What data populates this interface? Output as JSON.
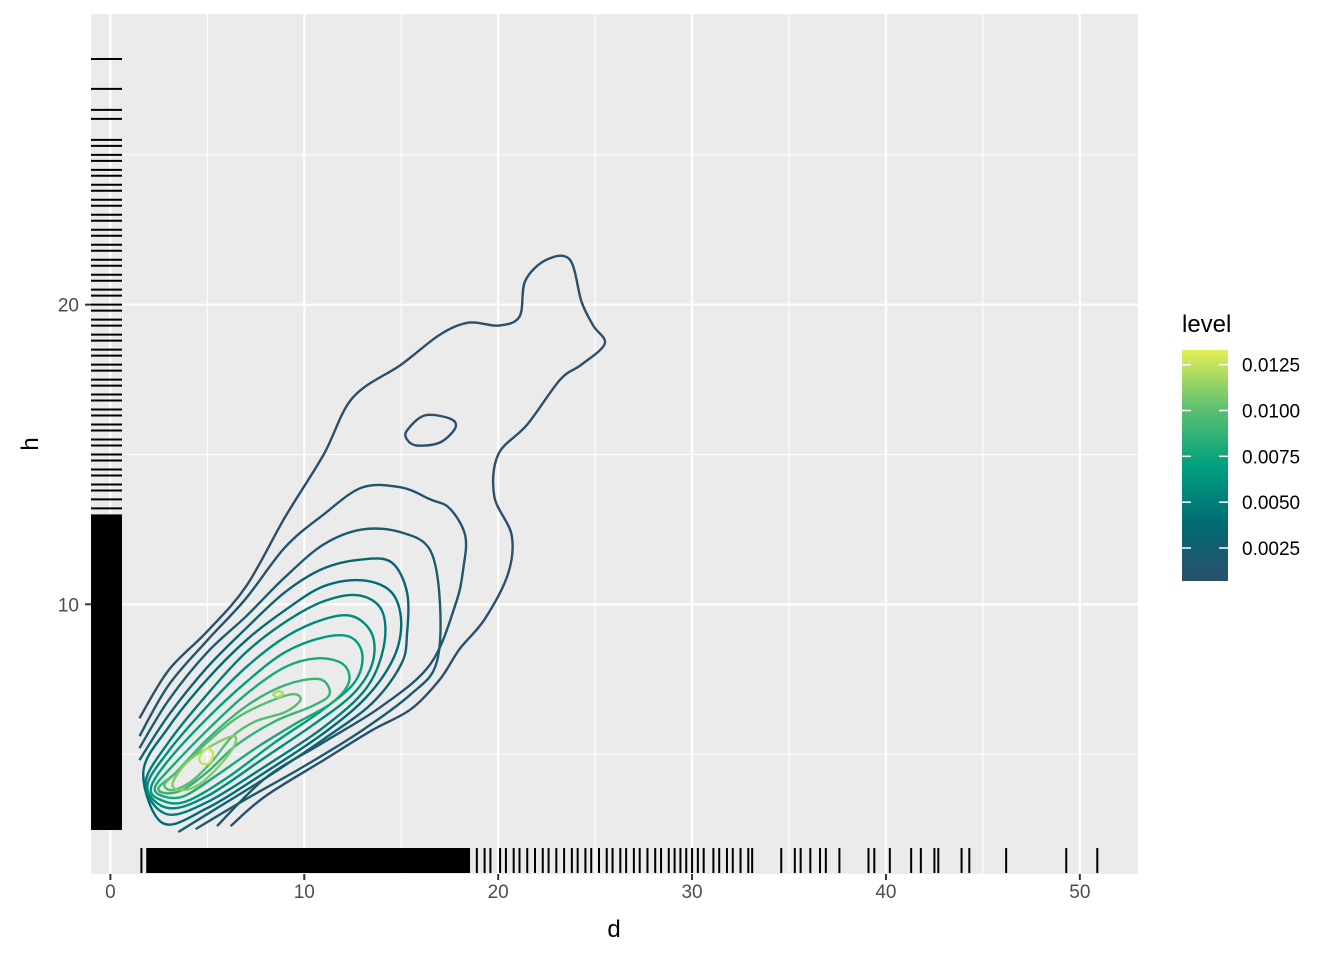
{
  "chart_data": {
    "type": "contour",
    "title": "",
    "xlabel": "d",
    "ylabel": "h",
    "xlim": [
      -1,
      53
    ],
    "ylim": [
      1,
      29.7
    ],
    "x_ticks": [
      0,
      10,
      20,
      30,
      40,
      50
    ],
    "y_ticks": [
      10,
      20
    ],
    "grid": true,
    "legend": {
      "title": "level",
      "position": "right",
      "range": [
        0.0007,
        0.0133
      ],
      "breaks": [
        0.0025,
        0.005,
        0.0075,
        0.01,
        0.0125
      ],
      "break_labels": [
        "0.0025",
        "0.0050",
        "0.0075",
        "0.0100",
        "0.0125"
      ],
      "colors": [
        "#2c4f6b",
        "#006b75",
        "#00a07d",
        "#5fc170",
        "#e5ee56"
      ]
    },
    "contours": [
      {
        "level": 0.0007,
        "points": [
          [
            1.5,
            6.2
          ],
          [
            3,
            7.8
          ],
          [
            5,
            9.1
          ],
          [
            7,
            10.6
          ],
          [
            9,
            12.9
          ],
          [
            11,
            15.0
          ],
          [
            12.5,
            16.9
          ],
          [
            15,
            18.0
          ],
          [
            17,
            19.0
          ],
          [
            18.5,
            19.4
          ],
          [
            20,
            19.3
          ],
          [
            21.1,
            19.6
          ],
          [
            21.4,
            20.8
          ],
          [
            22.5,
            21.5
          ],
          [
            23.7,
            21.5
          ],
          [
            24.3,
            20.1
          ],
          [
            24.9,
            19.3
          ],
          [
            25.5,
            18.7
          ],
          [
            24.3,
            18.0
          ],
          [
            23.2,
            17.5
          ],
          [
            21.5,
            16.0
          ],
          [
            20,
            15.0
          ],
          [
            19.8,
            13.6
          ],
          [
            20.7,
            12.3
          ],
          [
            20.5,
            11.0
          ],
          [
            19.3,
            9.5
          ],
          [
            18,
            8.5
          ],
          [
            17,
            7.5
          ],
          [
            15.5,
            6.5
          ],
          [
            13.5,
            5.8
          ],
          [
            11,
            4.8
          ],
          [
            8,
            3.6
          ],
          [
            6.2,
            2.6
          ]
        ],
        "closed": false
      },
      {
        "level": 0.0007,
        "points": [
          [
            15.3,
            15.8
          ],
          [
            16.2,
            16.3
          ],
          [
            17.5,
            16.2
          ],
          [
            17.8,
            15.9
          ],
          [
            17.0,
            15.4
          ],
          [
            15.8,
            15.3
          ],
          [
            15.3,
            15.5
          ]
        ],
        "closed": true
      },
      {
        "level": 0.0014,
        "points": [
          [
            1.5,
            5.6
          ],
          [
            3,
            7.3
          ],
          [
            5,
            8.8
          ],
          [
            7,
            10.2
          ],
          [
            9,
            11.9
          ],
          [
            11,
            13.0
          ],
          [
            13,
            13.9
          ],
          [
            15,
            13.9
          ],
          [
            16.5,
            13.5
          ],
          [
            17.5,
            13.2
          ],
          [
            18.3,
            12.3
          ],
          [
            18.2,
            11.2
          ],
          [
            17.8,
            10.0
          ],
          [
            16.5,
            8.0
          ],
          [
            14,
            6.6
          ],
          [
            11,
            5.4
          ],
          [
            8,
            4.2
          ],
          [
            5.5,
            2.6
          ]
        ],
        "closed": false
      },
      {
        "level": 0.002,
        "points": [
          [
            1.5,
            5.2
          ],
          [
            3,
            6.8
          ],
          [
            5,
            8.4
          ],
          [
            7,
            9.6
          ],
          [
            9,
            10.9
          ],
          [
            11,
            12.0
          ],
          [
            13,
            12.5
          ],
          [
            15,
            12.4
          ],
          [
            16.5,
            11.8
          ],
          [
            17,
            10.0
          ],
          [
            16.8,
            8.0
          ],
          [
            15.5,
            7.0
          ],
          [
            13,
            5.8
          ],
          [
            10,
            4.6
          ],
          [
            7,
            3.5
          ],
          [
            4.4,
            2.5
          ]
        ],
        "closed": false
      },
      {
        "level": 0.0028,
        "points": [
          [
            1.5,
            4.8
          ],
          [
            3,
            6.3
          ],
          [
            5,
            7.9
          ],
          [
            7,
            9.2
          ],
          [
            9,
            10.4
          ],
          [
            11,
            11.2
          ],
          [
            13,
            11.5
          ],
          [
            14.5,
            11.4
          ],
          [
            15.3,
            10.4
          ],
          [
            15.3,
            9.0
          ],
          [
            15,
            8.0
          ],
          [
            13.5,
            6.7
          ],
          [
            11,
            5.5
          ],
          [
            8,
            4.2
          ],
          [
            5.5,
            3.2
          ],
          [
            3.5,
            2.4
          ]
        ],
        "closed": false
      },
      {
        "level": 0.0038,
        "points": [
          [
            1.7,
            4.4
          ],
          [
            3,
            5.9
          ],
          [
            5,
            7.5
          ],
          [
            7,
            8.8
          ],
          [
            9,
            9.8
          ],
          [
            11,
            10.6
          ],
          [
            13,
            10.8
          ],
          [
            14.5,
            10.4
          ],
          [
            15,
            9.4
          ],
          [
            14.6,
            8.2
          ],
          [
            13.2,
            6.9
          ],
          [
            11,
            5.7
          ],
          [
            8,
            4.4
          ],
          [
            5,
            3.2
          ],
          [
            2.7,
            2.7
          ]
        ],
        "closed": true
      },
      {
        "level": 0.0048,
        "points": [
          [
            1.8,
            4.0
          ],
          [
            3,
            5.4
          ],
          [
            5,
            7.0
          ],
          [
            7,
            8.4
          ],
          [
            9,
            9.4
          ],
          [
            11,
            10.1
          ],
          [
            12.8,
            10.3
          ],
          [
            14.0,
            9.8
          ],
          [
            14.1,
            8.6
          ],
          [
            13.2,
            7.2
          ],
          [
            11,
            5.9
          ],
          [
            8,
            4.6
          ],
          [
            5,
            3.4
          ],
          [
            2.9,
            3.0
          ]
        ],
        "closed": true
      },
      {
        "level": 0.0058,
        "points": [
          [
            1.9,
            3.9
          ],
          [
            3,
            5.1
          ],
          [
            5,
            6.6
          ],
          [
            7,
            7.9
          ],
          [
            9,
            8.9
          ],
          [
            11,
            9.5
          ],
          [
            12.5,
            9.6
          ],
          [
            13.5,
            9.0
          ],
          [
            13.5,
            8.0
          ],
          [
            12.5,
            7.0
          ],
          [
            10.5,
            6.0
          ],
          [
            8,
            4.9
          ],
          [
            5,
            3.6
          ],
          [
            3.0,
            3.2
          ]
        ],
        "closed": true
      },
      {
        "level": 0.0068,
        "points": [
          [
            2.1,
            3.9
          ],
          [
            3,
            4.8
          ],
          [
            5,
            6.2
          ],
          [
            7,
            7.4
          ],
          [
            9,
            8.4
          ],
          [
            11,
            8.9
          ],
          [
            12.4,
            8.9
          ],
          [
            13,
            8.3
          ],
          [
            12.6,
            7.4
          ],
          [
            11,
            6.5
          ],
          [
            8.5,
            5.4
          ],
          [
            6,
            4.2
          ],
          [
            3.8,
            3.4
          ],
          [
            2.5,
            3.5
          ]
        ],
        "closed": true
      },
      {
        "level": 0.0078,
        "points": [
          [
            2.3,
            3.9
          ],
          [
            3.2,
            4.6
          ],
          [
            5,
            5.8
          ],
          [
            7,
            7.0
          ],
          [
            9,
            7.9
          ],
          [
            10.7,
            8.2
          ],
          [
            12,
            8.0
          ],
          [
            12.3,
            7.4
          ],
          [
            11.4,
            6.7
          ],
          [
            9.5,
            6.0
          ],
          [
            7.5,
            5.2
          ],
          [
            5.5,
            4.3
          ],
          [
            3.8,
            3.6
          ],
          [
            2.7,
            3.6
          ]
        ],
        "closed": true
      },
      {
        "level": 0.0088,
        "points": [
          [
            2.5,
            3.9
          ],
          [
            3.4,
            4.4
          ],
          [
            5,
            5.5
          ],
          [
            7,
            6.6
          ],
          [
            9,
            7.3
          ],
          [
            10.8,
            7.5
          ],
          [
            11.3,
            7.0
          ],
          [
            10.4,
            6.6
          ],
          [
            8.5,
            6.1
          ],
          [
            6.5,
            5.3
          ],
          [
            5,
            4.4
          ],
          [
            3.7,
            3.8
          ],
          [
            2.8,
            3.7
          ]
        ],
        "closed": true
      },
      {
        "level": 0.0098,
        "points": [
          [
            2.8,
            4.0
          ],
          [
            3.6,
            4.5
          ],
          [
            5,
            5.4
          ],
          [
            6.5,
            6.2
          ],
          [
            8,
            6.7
          ],
          [
            9.4,
            7.0
          ],
          [
            9.8,
            6.8
          ],
          [
            9,
            6.4
          ],
          [
            7.5,
            6.1
          ],
          [
            6.3,
            5.6
          ],
          [
            5.3,
            4.8
          ],
          [
            4.2,
            4.1
          ],
          [
            3.2,
            3.8
          ]
        ],
        "closed": true
      },
      {
        "level": 0.011,
        "points": [
          [
            3.2,
            4.0
          ],
          [
            3.9,
            4.7
          ],
          [
            5,
            5.2
          ],
          [
            6.3,
            5.6
          ],
          [
            6.4,
            5.3
          ],
          [
            5.6,
            4.6
          ],
          [
            4.6,
            4.0
          ],
          [
            3.7,
            3.8
          ]
        ],
        "closed": true
      },
      {
        "level": 0.012,
        "points": [
          [
            8.4,
            7.0
          ],
          [
            8.7,
            7.1
          ],
          [
            8.9,
            7.0
          ],
          [
            8.6,
            6.9
          ]
        ],
        "closed": true
      },
      {
        "level": 0.0125,
        "points": [
          [
            4.6,
            4.9
          ],
          [
            5.0,
            5.2
          ],
          [
            5.3,
            5.0
          ],
          [
            5.1,
            4.7
          ],
          [
            4.7,
            4.7
          ]
        ],
        "closed": true
      }
    ],
    "rug_x_dense_range": [
      1.9,
      18.5
    ],
    "rug_x": [
      1.6,
      1.9,
      18.5,
      18.9,
      19.3,
      19.6,
      20.1,
      20.4,
      20.8,
      21.1,
      21.5,
      21.9,
      22.3,
      22.6,
      23.0,
      23.4,
      23.8,
      24.1,
      24.5,
      24.8,
      25.2,
      25.6,
      25.9,
      26.3,
      26.6,
      27.0,
      27.3,
      27.7,
      28.1,
      28.4,
      28.8,
      29.1,
      29.4,
      29.7,
      30.0,
      30.3,
      30.6,
      31.1,
      31.4,
      31.8,
      32.1,
      32.5,
      32.9,
      33.1,
      34.6,
      35.3,
      35.6,
      36.1,
      36.6,
      36.9,
      37.6,
      39.1,
      39.4,
      40.2,
      41.3,
      41.8,
      42.5,
      42.7,
      43.9,
      44.3,
      46.2,
      49.3,
      50.9
    ],
    "rug_y_dense_range": [
      2.5,
      13.0
    ],
    "rug_y": [
      2.5,
      2.7,
      13.2,
      13.5,
      13.8,
      14.0,
      14.3,
      14.5,
      14.8,
      15.0,
      15.3,
      15.5,
      15.8,
      16.0,
      16.3,
      16.5,
      16.8,
      17.0,
      17.3,
      17.5,
      17.8,
      18.0,
      18.3,
      18.5,
      18.8,
      19.0,
      19.3,
      19.5,
      19.8,
      20.0,
      20.3,
      20.5,
      20.8,
      21.0,
      21.3,
      21.5,
      21.8,
      22.0,
      22.3,
      22.5,
      22.8,
      23.0,
      23.3,
      23.5,
      23.8,
      24.0,
      24.3,
      24.5,
      24.8,
      25.0,
      25.3,
      25.5,
      26.2,
      26.5,
      27.2,
      28.2
    ]
  }
}
